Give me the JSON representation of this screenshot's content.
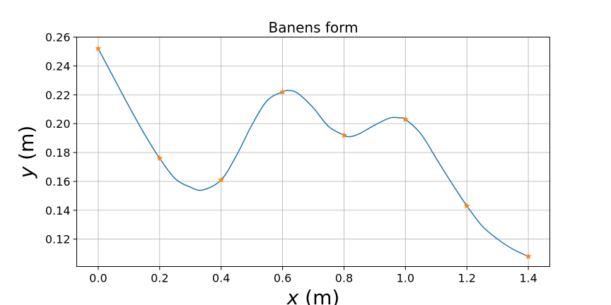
{
  "chart_data": {
    "type": "line",
    "title": "Banens form",
    "xlabel_var": "x",
    "xlabel_unit": " (m)",
    "ylabel_var": "y",
    "ylabel_unit": " (m)",
    "xlim": [
      -0.07,
      1.47
    ],
    "ylim": [
      0.101,
      0.26
    ],
    "grid": true,
    "xticks": [
      "0.0",
      "0.2",
      "0.4",
      "0.6",
      "0.8",
      "1.0",
      "1.2",
      "1.4"
    ],
    "xtick_values": [
      0.0,
      0.2,
      0.4,
      0.6,
      0.8,
      1.0,
      1.2,
      1.4
    ],
    "yticks": [
      "0.12",
      "0.14",
      "0.16",
      "0.18",
      "0.20",
      "0.22",
      "0.24",
      "0.26"
    ],
    "ytick_values": [
      0.12,
      0.14,
      0.16,
      0.18,
      0.2,
      0.22,
      0.24,
      0.26
    ],
    "series": [
      {
        "kind": "curve",
        "color": "#1f77b4",
        "x": [
          0.0,
          0.05,
          0.1,
          0.15,
          0.2,
          0.25,
          0.3,
          0.34,
          0.4,
          0.45,
          0.5,
          0.55,
          0.6,
          0.62,
          0.65,
          0.7,
          0.75,
          0.8,
          0.82,
          0.85,
          0.9,
          0.95,
          0.98,
          1.0,
          1.05,
          1.1,
          1.15,
          1.2,
          1.25,
          1.3,
          1.35,
          1.4
        ],
        "y": [
          0.252,
          0.232,
          0.212,
          0.193,
          0.176,
          0.162,
          0.156,
          0.154,
          0.161,
          0.178,
          0.199,
          0.216,
          0.222,
          0.223,
          0.221,
          0.211,
          0.198,
          0.192,
          0.191,
          0.193,
          0.199,
          0.204,
          0.204,
          0.203,
          0.193,
          0.176,
          0.159,
          0.143,
          0.129,
          0.12,
          0.113,
          0.108
        ]
      },
      {
        "kind": "markers",
        "color": "#ff7f0e",
        "marker": "star",
        "x": [
          0.0,
          0.2,
          0.4,
          0.6,
          0.8,
          1.0,
          1.2,
          1.4
        ],
        "y": [
          0.252,
          0.176,
          0.161,
          0.222,
          0.192,
          0.203,
          0.143,
          0.108
        ]
      }
    ]
  }
}
